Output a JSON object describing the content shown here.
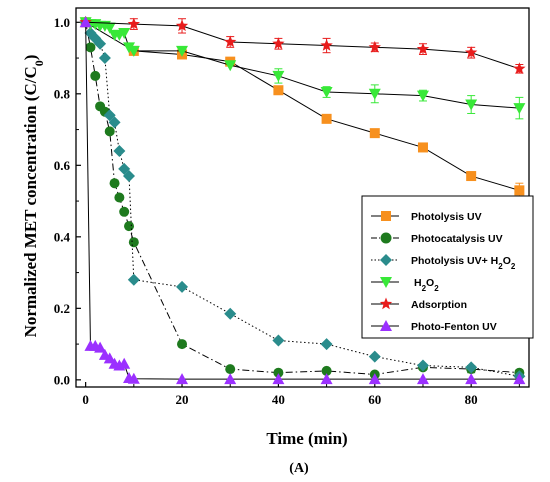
{
  "chart_data": {
    "type": "line",
    "ylabel_main": "Normalized MET concentration (C/C",
    "ylabel_sub": "0",
    "ylabel_close": ")",
    "xlabel": "Time (min)",
    "panel_label": "(A)",
    "xlim": [
      -2,
      92
    ],
    "ylim": [
      -0.02,
      1.04
    ],
    "x_ticks": [
      0,
      20,
      40,
      60,
      80
    ],
    "x_tick_labels": [
      "0",
      "20",
      "40",
      "60",
      "80"
    ],
    "y_ticks": [
      0.0,
      0.2,
      0.4,
      0.6,
      0.8,
      1.0
    ],
    "y_tick_labels": [
      "0.0",
      "0.2",
      "0.4",
      "0.6",
      "0.8",
      "1.0"
    ],
    "legend_position": "center-right",
    "series": [
      {
        "name": "Photolysis UV",
        "color": "#f7901e",
        "marker": "square",
        "line_style": "solid",
        "x": [
          0,
          10,
          20,
          30,
          40,
          50,
          60,
          70,
          80,
          90
        ],
        "y": [
          1.0,
          0.92,
          0.91,
          0.89,
          0.81,
          0.73,
          0.69,
          0.65,
          0.57,
          0.53
        ],
        "err": [
          0,
          0,
          0,
          0,
          0,
          0,
          0,
          0,
          0,
          0.02
        ]
      },
      {
        "name": "Photocatalysis UV",
        "color": "#1e7a1e",
        "marker": "circle",
        "line_style": "dashdot",
        "x": [
          0,
          1,
          2,
          3,
          4,
          5,
          6,
          7,
          8,
          9,
          10,
          20,
          30,
          40,
          50,
          60,
          70,
          80,
          90
        ],
        "y": [
          1.0,
          0.93,
          0.85,
          0.765,
          0.75,
          0.695,
          0.55,
          0.51,
          0.47,
          0.43,
          0.385,
          0.1,
          0.03,
          0.02,
          0.025,
          0.015,
          0.035,
          0.03,
          0.02
        ],
        "err": [
          0,
          0,
          0,
          0,
          0,
          0,
          0,
          0,
          0,
          0,
          0,
          0,
          0,
          0,
          0,
          0,
          0,
          0.01,
          0
        ]
      },
      {
        "name_main": "Photolysis UV+ H",
        "name_sub1": "2",
        "name_mid": "O",
        "name_sub2": "2",
        "color": "#2a8c8c",
        "marker": "diamond",
        "line_style": "dotted",
        "x": [
          0,
          1,
          2,
          3,
          4,
          5,
          6,
          7,
          8,
          9,
          10,
          20,
          30,
          40,
          50,
          60,
          70,
          80,
          90
        ],
        "y": [
          1.0,
          0.97,
          0.955,
          0.94,
          0.9,
          0.74,
          0.72,
          0.64,
          0.59,
          0.57,
          0.28,
          0.26,
          0.185,
          0.11,
          0.1,
          0.065,
          0.04,
          0.035,
          0.01
        ],
        "err": [
          0,
          0,
          0,
          0,
          0,
          0,
          0,
          0,
          0,
          0,
          0,
          0,
          0,
          0,
          0,
          0,
          0,
          0,
          0
        ]
      },
      {
        "name_main": "H",
        "name_sub1": "2",
        "name_mid": "O",
        "name_sub2": "2",
        "color": "#38e838",
        "marker": "triangle-down",
        "line_style": "solid",
        "x": [
          0,
          1,
          2,
          3,
          4,
          5,
          6,
          7,
          8,
          9,
          10,
          20,
          30,
          40,
          50,
          60,
          70,
          80,
          90
        ],
        "y": [
          1.0,
          0.995,
          0.995,
          0.99,
          0.99,
          0.985,
          0.965,
          0.965,
          0.97,
          0.93,
          0.92,
          0.92,
          0.88,
          0.85,
          0.805,
          0.8,
          0.795,
          0.77,
          0.76
        ],
        "err": [
          0,
          0,
          0,
          0,
          0,
          0,
          0,
          0,
          0,
          0,
          0,
          0,
          0,
          0.02,
          0.015,
          0.025,
          0.015,
          0.025,
          0.03
        ]
      },
      {
        "name": "Adsorption",
        "color": "#e81c1c",
        "marker": "star",
        "line_style": "solid",
        "x": [
          0,
          10,
          20,
          30,
          40,
          50,
          60,
          70,
          80,
          90
        ],
        "y": [
          1.0,
          0.995,
          0.99,
          0.945,
          0.94,
          0.935,
          0.93,
          0.925,
          0.915,
          0.87
        ],
        "err": [
          0,
          0.015,
          0.02,
          0.015,
          0.015,
          0.02,
          0.012,
          0.015,
          0.015,
          0.012
        ]
      },
      {
        "name": "Photo-Fenton UV",
        "color": "#9b30ff",
        "marker": "triangle-up",
        "line_style": "solid",
        "x": [
          0,
          1,
          2,
          3,
          4,
          5,
          6,
          7,
          8,
          9,
          10,
          20,
          30,
          40,
          50,
          60,
          70,
          80,
          90
        ],
        "y": [
          1.0,
          0.095,
          0.095,
          0.09,
          0.07,
          0.06,
          0.045,
          0.04,
          0.045,
          0.005,
          0.003,
          0.002,
          0.002,
          0.002,
          0.002,
          0.002,
          0.002,
          0.002,
          0.002
        ],
        "err": [
          0,
          0,
          0,
          0,
          0,
          0,
          0,
          0,
          0,
          0,
          0,
          0,
          0,
          0,
          0,
          0,
          0,
          0,
          0
        ]
      }
    ]
  }
}
